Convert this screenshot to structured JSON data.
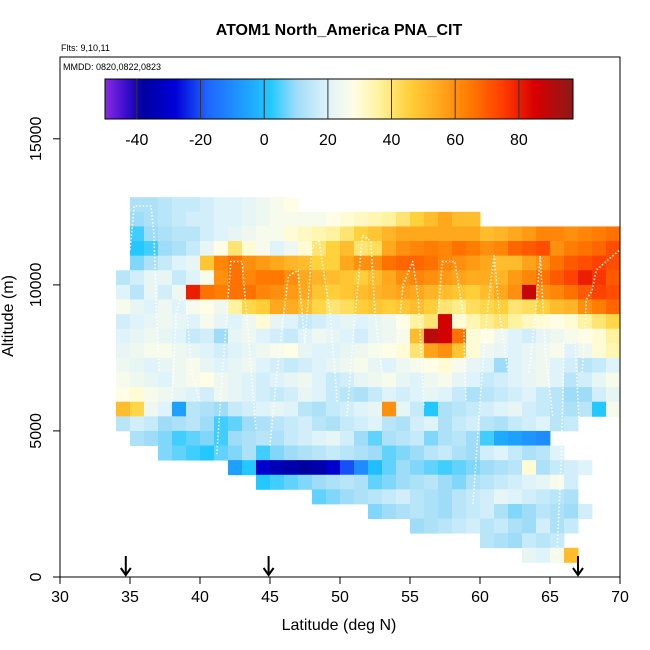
{
  "chart_data": {
    "type": "heatmap",
    "title": "ATOM1 North_America PNA_CIT",
    "flights_note": "Flts: 9,10,11",
    "dates_note": "MMDD: 0820,0822,0823",
    "xlabel": "Latitude (deg N)",
    "ylabel": "Altitude (m)",
    "xlim": [
      30,
      70
    ],
    "ylim": [
      0,
      17800
    ],
    "x_ticks": [
      "30",
      "35",
      "40",
      "45",
      "50",
      "55",
      "60",
      "65",
      "70"
    ],
    "y_ticks": [
      "0",
      "5000",
      "10000",
      "15000"
    ],
    "colorbar": {
      "range": [
        -50,
        97
      ],
      "ticks": [
        "-40",
        "-20",
        "0",
        "20",
        "40",
        "60",
        "80"
      ],
      "stops": [
        {
          "v": -50,
          "c": "#8a2be2"
        },
        {
          "v": -44,
          "c": "#4010d0"
        },
        {
          "v": -38,
          "c": "#0000a0"
        },
        {
          "v": -28,
          "c": "#0000d8"
        },
        {
          "v": -18,
          "c": "#1e64ff"
        },
        {
          "v": -6,
          "c": "#1ea0ff"
        },
        {
          "v": 2,
          "c": "#22c8ff"
        },
        {
          "v": 10,
          "c": "#9fdcf8"
        },
        {
          "v": 20,
          "c": "#dff3fa"
        },
        {
          "v": 28,
          "c": "#fffde6"
        },
        {
          "v": 36,
          "c": "#fff3a0"
        },
        {
          "v": 45,
          "c": "#ffd23c"
        },
        {
          "v": 55,
          "c": "#ffa81e"
        },
        {
          "v": 65,
          "c": "#ff7800"
        },
        {
          "v": 75,
          "c": "#ff3c00"
        },
        {
          "v": 85,
          "c": "#d80000"
        },
        {
          "v": 97,
          "c": "#8b1a1a"
        }
      ]
    },
    "flight_start_markers_lat": [
      34.7,
      44.9,
      67.0
    ],
    "cell_size": {
      "lat": 1.0,
      "alt": 500
    },
    "rows": [
      {
        "alt": 12500,
        "lat0": 35,
        "values": [
          12,
          12,
          14,
          16,
          16,
          18,
          20,
          20,
          22,
          24,
          26,
          28
        ]
      },
      {
        "alt": 12000,
        "lat0": 35,
        "values": [
          10,
          12,
          14,
          16,
          18,
          18,
          20,
          20,
          22,
          24,
          26,
          26,
          26,
          26,
          28,
          30,
          32,
          34,
          36,
          40,
          45,
          50,
          55,
          50,
          50
        ]
      },
      {
        "alt": 11500,
        "lat0": 35,
        "values": [
          4,
          10,
          12,
          14,
          14,
          18,
          20,
          22,
          24,
          26,
          26,
          30,
          32,
          34,
          36,
          40,
          45,
          48,
          52,
          55,
          55,
          55,
          55,
          55,
          55,
          50,
          52,
          55,
          58,
          62,
          62,
          60,
          62,
          64,
          66
        ]
      },
      {
        "alt": 11000,
        "lat0": 35,
        "values": [
          2,
          4,
          10,
          12,
          16,
          22,
          28,
          40,
          30,
          26,
          20,
          24,
          30,
          40,
          45,
          50,
          40,
          42,
          55,
          60,
          62,
          64,
          62,
          66,
          64,
          60,
          62,
          68,
          70,
          72,
          60,
          64,
          66,
          68,
          72
        ]
      },
      {
        "alt": 10500,
        "lat0": 35,
        "values": [
          8,
          12,
          16,
          20,
          22,
          48,
          62,
          66,
          60,
          58,
          55,
          52,
          50,
          45,
          45,
          55,
          60,
          60,
          66,
          68,
          68,
          66,
          62,
          60,
          58,
          55,
          50,
          50,
          56,
          60,
          66,
          70,
          72,
          74,
          72
        ]
      },
      {
        "alt": 10000,
        "lat0": 34,
        "values": [
          14,
          18,
          22,
          22,
          16,
          20,
          26,
          60,
          66,
          62,
          65,
          65,
          60,
          55,
          52,
          50,
          48,
          46,
          50,
          55,
          60,
          62,
          60,
          58,
          56,
          54,
          54,
          52,
          58,
          62,
          66,
          70,
          74,
          80,
          76,
          70
        ]
      },
      {
        "alt": 9500,
        "lat0": 34,
        "values": [
          20,
          14,
          22,
          18,
          24,
          80,
          66,
          64,
          66,
          66,
          62,
          60,
          58,
          55,
          48,
          46,
          48,
          50,
          52,
          54,
          56,
          55,
          52,
          50,
          48,
          46,
          50,
          55,
          60,
          88,
          60,
          62,
          66,
          70,
          74,
          72
        ]
      },
      {
        "alt": 9000,
        "lat0": 34,
        "values": [
          26,
          22,
          20,
          24,
          20,
          26,
          28,
          24,
          36,
          44,
          46,
          55,
          54,
          50,
          44,
          40,
          42,
          46,
          48,
          46,
          48,
          50,
          46,
          40,
          38,
          42,
          44,
          46,
          40,
          42,
          46,
          50,
          52,
          60,
          64,
          68
        ]
      },
      {
        "alt": 8500,
        "lat0": 34,
        "values": [
          18,
          20,
          22,
          24,
          22,
          20,
          26,
          22,
          20,
          24,
          30,
          22,
          20,
          16,
          18,
          20,
          22,
          20,
          22,
          24,
          28,
          36,
          40,
          86,
          30,
          34,
          38,
          40,
          36,
          32,
          30,
          28,
          30,
          36,
          40,
          44
        ]
      },
      {
        "alt": 8000,
        "lat0": 34,
        "values": [
          20,
          22,
          24,
          22,
          20,
          16,
          18,
          10,
          22,
          24,
          20,
          18,
          16,
          20,
          24,
          22,
          20,
          18,
          22,
          24,
          26,
          50,
          90,
          86,
          66,
          30,
          28,
          24,
          20,
          18,
          22,
          24,
          26,
          28,
          30,
          36
        ]
      },
      {
        "alt": 7500,
        "lat0": 34,
        "values": [
          22,
          24,
          26,
          26,
          24,
          22,
          20,
          18,
          20,
          22,
          24,
          26,
          28,
          22,
          20,
          20,
          22,
          24,
          26,
          28,
          30,
          40,
          56,
          60,
          48,
          30,
          24,
          22,
          20,
          22,
          24,
          26,
          20,
          24,
          30,
          34
        ]
      },
      {
        "alt": 7000,
        "lat0": 34,
        "values": [
          24,
          22,
          20,
          22,
          24,
          26,
          22,
          20,
          22,
          24,
          20,
          18,
          16,
          18,
          20,
          22,
          24,
          26,
          22,
          20,
          24,
          26,
          28,
          30,
          26,
          22,
          20,
          10,
          20,
          22,
          24,
          20,
          18,
          14,
          16,
          20
        ]
      },
      {
        "alt": 6500,
        "lat0": 34,
        "values": [
          26,
          24,
          22,
          20,
          24,
          26,
          28,
          24,
          22,
          20,
          18,
          20,
          22,
          24,
          20,
          16,
          18,
          22,
          24,
          26,
          22,
          20,
          24,
          26,
          22,
          20,
          16,
          18,
          20,
          22,
          24,
          20,
          14,
          18,
          22,
          26
        ]
      },
      {
        "alt": 6000,
        "lat0": 34,
        "values": [
          28,
          30,
          26,
          24,
          22,
          20,
          18,
          24,
          22,
          20,
          18,
          16,
          18,
          22,
          20,
          16,
          14,
          12,
          16,
          20,
          18,
          20,
          22,
          20,
          16,
          12,
          14,
          16,
          18,
          20,
          16,
          14,
          10,
          10,
          18,
          22
        ]
      },
      {
        "alt": 5500,
        "lat0": 34,
        "values": [
          50,
          44,
          24,
          20,
          -6,
          14,
          12,
          10,
          16,
          18,
          20,
          22,
          20,
          14,
          12,
          16,
          18,
          20,
          22,
          60,
          22,
          16,
          2,
          12,
          14,
          16,
          18,
          20,
          22,
          18,
          16,
          14,
          12,
          14,
          2,
          26
        ]
      },
      {
        "alt": 5000,
        "lat0": 34,
        "values": [
          14,
          18,
          16,
          10,
          12,
          14,
          10,
          4,
          6,
          10,
          12,
          14,
          16,
          18,
          14,
          12,
          16,
          18,
          20,
          14,
          12,
          18,
          20,
          12,
          16,
          18,
          14,
          12,
          16,
          18,
          20,
          14,
          16
        ]
      },
      {
        "alt": 4500,
        "lat0": 35,
        "values": [
          12,
          10,
          8,
          4,
          6,
          8,
          4,
          10,
          12,
          14,
          12,
          16,
          18,
          20,
          22,
          18,
          10,
          6,
          12,
          14,
          16,
          8,
          12,
          14,
          10,
          4,
          -4,
          -6,
          -8,
          -10
        ]
      },
      {
        "alt": 4000,
        "lat0": 37,
        "values": [
          8,
          6,
          4,
          2,
          6,
          8,
          12,
          4,
          8,
          10,
          12,
          14,
          16,
          14,
          12,
          10,
          6,
          8,
          10,
          14,
          16,
          12,
          10,
          18,
          20,
          16,
          12,
          14,
          20
        ]
      },
      {
        "alt": 3500,
        "lat0": 42,
        "values": [
          -6,
          2,
          -30,
          -34,
          -36,
          -38,
          -36,
          -30,
          -20,
          -10,
          0,
          6,
          10,
          8,
          6,
          4,
          6,
          8,
          10,
          12,
          14,
          30,
          12,
          16,
          18,
          20
        ]
      },
      {
        "alt": 3000,
        "lat0": 44,
        "values": [
          2,
          4,
          6,
          8,
          10,
          12,
          14,
          12,
          6,
          8,
          10,
          12,
          14,
          10,
          8,
          12,
          14,
          16,
          18,
          20,
          22,
          26,
          18
        ]
      },
      {
        "alt": 2500,
        "lat0": 48,
        "values": [
          6,
          8,
          10,
          12,
          14,
          16,
          18,
          14,
          12,
          10,
          14,
          16,
          18,
          22,
          20,
          18,
          16,
          14,
          12
        ]
      },
      {
        "alt": 2000,
        "lat0": 52,
        "values": [
          8,
          10,
          12,
          14,
          12,
          10,
          14,
          16,
          18,
          12,
          8,
          10,
          14,
          12,
          10,
          18
        ]
      },
      {
        "alt": 1500,
        "lat0": 55,
        "values": [
          10,
          12,
          14,
          16,
          18,
          14,
          16,
          12,
          10,
          18,
          12,
          16
        ]
      },
      {
        "alt": 1000,
        "lat0": 60,
        "values": [
          14,
          12,
          10,
          16,
          14,
          16
        ]
      },
      {
        "alt": 500,
        "lat0": 63,
        "values": [
          22,
          20,
          26,
          50
        ]
      }
    ]
  }
}
